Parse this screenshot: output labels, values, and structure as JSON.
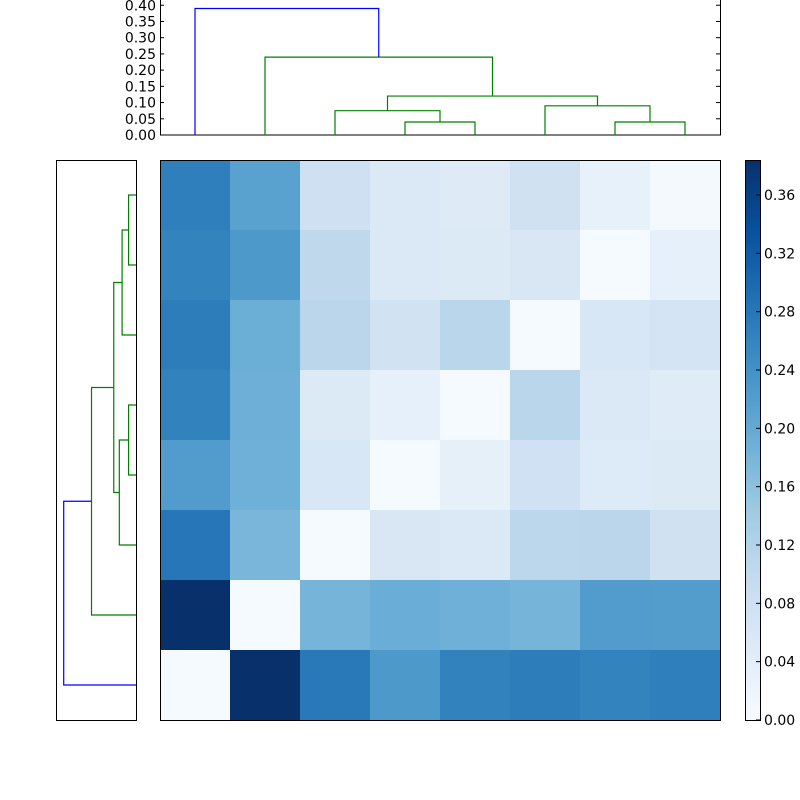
{
  "chart_data": {
    "type": "heatmap",
    "title": "",
    "xlabel": "",
    "ylabel": "",
    "colormap": "Blues",
    "color_range": [
      0.0,
      0.384
    ],
    "matrix": [
      [
        0.267,
        0.213,
        0.081,
        0.055,
        0.049,
        0.076,
        0.03,
        0.005
      ],
      [
        0.262,
        0.228,
        0.105,
        0.054,
        0.052,
        0.059,
        0.004,
        0.032
      ],
      [
        0.27,
        0.191,
        0.109,
        0.075,
        0.111,
        0.004,
        0.06,
        0.068
      ],
      [
        0.263,
        0.19,
        0.052,
        0.032,
        0.004,
        0.11,
        0.055,
        0.046
      ],
      [
        0.223,
        0.189,
        0.061,
        0.004,
        0.034,
        0.078,
        0.051,
        0.052
      ],
      [
        0.279,
        0.178,
        0.004,
        0.059,
        0.054,
        0.108,
        0.109,
        0.077
      ],
      [
        0.384,
        0.004,
        0.181,
        0.193,
        0.189,
        0.181,
        0.223,
        0.221
      ],
      [
        0.004,
        0.384,
        0.277,
        0.228,
        0.264,
        0.27,
        0.262,
        0.268
      ]
    ],
    "colorbar": {
      "ticks": [
        "0.00",
        "0.04",
        "0.08",
        "0.12",
        "0.16",
        "0.20",
        "0.24",
        "0.28",
        "0.32",
        "0.36"
      ]
    },
    "top_dendrogram": {
      "ylim": [
        0.0,
        0.41
      ],
      "y_ticks": [
        "0.00",
        "0.05",
        "0.10",
        "0.15",
        "0.20",
        "0.25",
        "0.30",
        "0.35",
        "0.40"
      ],
      "leaf_count": 8,
      "links": [
        {
          "left": 6.5,
          "right": 7.5,
          "height": 0.04,
          "left_h": 0.0,
          "right_h": 0.0,
          "color": "#008000"
        },
        {
          "left": 3.5,
          "right": 4.5,
          "height": 0.04,
          "left_h": 0.0,
          "right_h": 0.0,
          "color": "#008000"
        },
        {
          "left": 2.5,
          "right": 4.0,
          "height": 0.075,
          "left_h": 0.0,
          "right_h": 0.04,
          "color": "#008000"
        },
        {
          "left": 5.5,
          "right": 7.0,
          "height": 0.09,
          "left_h": 0.0,
          "right_h": 0.04,
          "color": "#008000"
        },
        {
          "left": 3.25,
          "right": 6.25,
          "height": 0.12,
          "left_h": 0.075,
          "right_h": 0.09,
          "color": "#008000"
        },
        {
          "left": 1.5,
          "right": 4.75,
          "height": 0.24,
          "left_h": 0.0,
          "right_h": 0.12,
          "color": "#008000"
        },
        {
          "left": 0.5,
          "right": 3.125,
          "height": 0.39,
          "left_h": 0.0,
          "right_h": 0.24,
          "color": "#0000ff"
        }
      ]
    },
    "left_dendrogram": {
      "xlim": [
        0.0,
        0.41
      ],
      "leaf_count": 8,
      "links": [
        {
          "top": 0.5,
          "bottom": 1.5,
          "depth": 0.04,
          "top_d": 0.0,
          "bottom_d": 0.0,
          "color": "#008000"
        },
        {
          "top": 3.5,
          "bottom": 4.5,
          "depth": 0.04,
          "top_d": 0.0,
          "bottom_d": 0.0,
          "color": "#008000"
        },
        {
          "top": 1.0,
          "bottom": 2.5,
          "depth": 0.075,
          "top_d": 0.04,
          "bottom_d": 0.0,
          "color": "#008000"
        },
        {
          "top": 4.0,
          "bottom": 5.5,
          "depth": 0.09,
          "top_d": 0.04,
          "bottom_d": 0.0,
          "color": "#008000"
        },
        {
          "top": 1.75,
          "bottom": 4.75,
          "depth": 0.12,
          "top_d": 0.075,
          "bottom_d": 0.09,
          "color": "#008000"
        },
        {
          "top": 3.25,
          "bottom": 6.5,
          "depth": 0.24,
          "top_d": 0.12,
          "bottom_d": 0.0,
          "color": "#008000"
        },
        {
          "top": 4.875,
          "bottom": 7.5,
          "depth": 0.39,
          "top_d": 0.24,
          "bottom_d": 0.0,
          "color": "#0000ff"
        }
      ]
    }
  }
}
